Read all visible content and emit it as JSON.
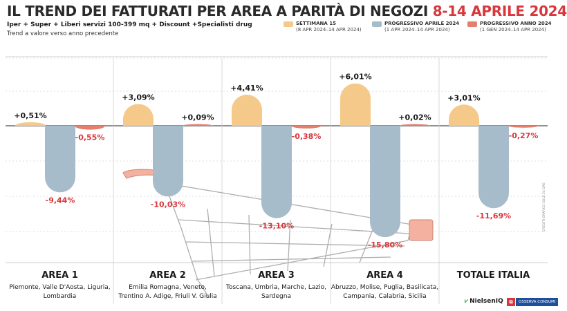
{
  "header": {
    "title_main": "IL TREND DEI FATTURATI PER AREA A PARITÀ DI NEGOZI ",
    "title_date": "8-14 APRILE 2024",
    "subtitle": "Iper + Super + Liberi servizi 100-399 mq + Discount +Specialisti drug",
    "subtitle2": "Trend a valore verso anno precedente"
  },
  "legend": [
    {
      "name": "SETTIMANA 15",
      "range": "(8 APR 2024–14 APR 2024)",
      "color": "#f5c98a"
    },
    {
      "name": "PROGRESSIVO APRILE 2024",
      "range": "(1 APR 2024–14 APR 2024)",
      "color": "#a7bccb"
    },
    {
      "name": "PROGRESSIVO ANNO 2024",
      "range": "(1 GEN 2024–14 APR 2024)",
      "color": "#e57e6c"
    }
  ],
  "chart_data": {
    "type": "bar",
    "categories": [
      "AREA 1",
      "AREA 2",
      "AREA 3",
      "AREA 4",
      "TOTALE ITALIA"
    ],
    "category_regions": [
      [
        "Piemonte, Valle D'Aosta, Liguria,",
        "Lombardia"
      ],
      [
        "Emilia Romagna, Veneto,",
        "Trentino A. Adige, Friuli V. Giulia"
      ],
      [
        "Toscana, Umbria, Marche, Lazio,",
        "Sardegna"
      ],
      [
        "Abruzzo, Molise, Puglia, Basilicata,",
        "Campania, Calabria, Sicilia"
      ],
      []
    ],
    "series": [
      {
        "name": "SETTIMANA 15",
        "values": [
          0.51,
          3.09,
          4.41,
          6.01,
          3.01
        ],
        "labels": [
          "+0,51%",
          "+3,09%",
          "+4,41%",
          "+6,01%",
          "+3,01%"
        ]
      },
      {
        "name": "PROGRESSIVO APRILE 2024",
        "values": [
          -9.44,
          -10.03,
          -13.1,
          -15.8,
          -11.69
        ],
        "labels": [
          "-9,44%",
          "-10,03%",
          "-13,10%",
          "-15,80%",
          "-11,69%"
        ]
      },
      {
        "name": "PROGRESSIVO ANNO 2024",
        "values": [
          -0.55,
          0.09,
          -0.38,
          0.02,
          -0.27
        ],
        "labels": [
          "-0,55%",
          "+0,09%",
          "-0,38%",
          "+0,02%",
          "-0,27%"
        ]
      }
    ],
    "colors": {
      "pos": "#1a1a1a",
      "neg": "#d8373c"
    },
    "grid": true
  },
  "credit": "CREDITI GRAFICO SOLE 24 ORE",
  "logos": {
    "nielsen": "NielsenIQ",
    "nielsen_mark": "⩗",
    "osservatorio_mark": "⧉",
    "osservatorio": "OSSERVA CONSUMI"
  }
}
